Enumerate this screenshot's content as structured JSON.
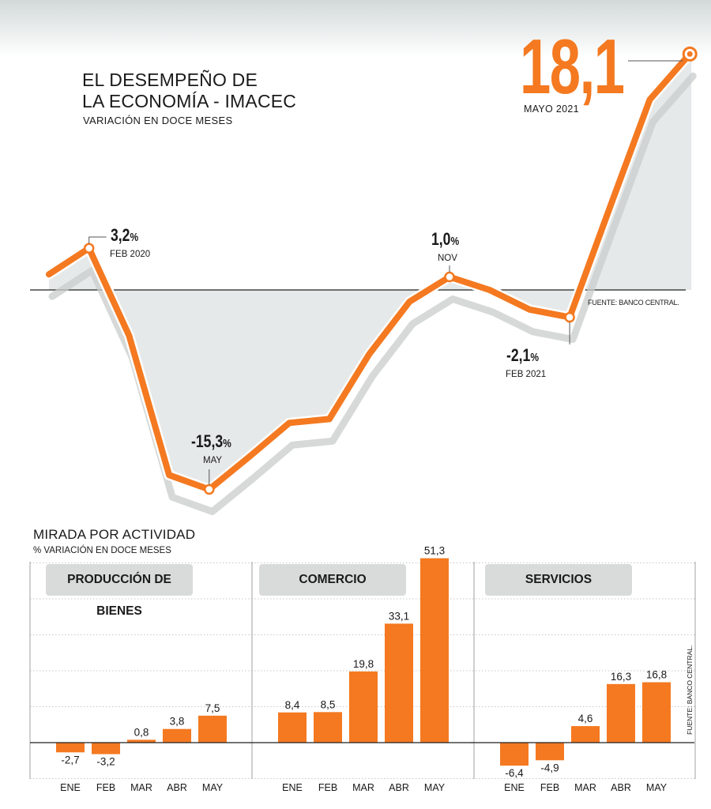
{
  "header": {
    "title_line1": "EL DESEMPEÑO DE",
    "title_line2": "LA ECONOMÍA - IMACEC",
    "subtitle": "VARIACIÓN EN DOCE MESES",
    "source": "FUENTE: BANCO CENTRAL."
  },
  "highlight": {
    "value": "18,1",
    "label": "MAYO 2021"
  },
  "annotations": {
    "feb2020": {
      "value": "3,2",
      "unit": "%",
      "label": "FEB 2020"
    },
    "may2020": {
      "value": "-15,3",
      "unit": "%",
      "label": "MAY"
    },
    "nov2020": {
      "value": "1,0",
      "unit": "%",
      "label": "NOV"
    },
    "feb2021": {
      "value": "-2,1",
      "unit": "%",
      "label": "FEB 2021"
    }
  },
  "section": {
    "title": "MIRADA POR ACTIVIDAD",
    "subtitle": "% VARIACIÓN EN DOCE MESES",
    "source": "FUENTE: BANCO CENTRAL."
  },
  "colors": {
    "accent": "#f47920",
    "shadow": "#c9cccc",
    "area": "#e6e9e9",
    "panel_label_bg": "#d9dbdb"
  },
  "chart_data": [
    {
      "type": "line",
      "title": "EL DESEMPEÑO DE LA ECONOMÍA - IMACEC",
      "subtitle": "VARIACIÓN EN DOCE MESES",
      "y_unit": "%",
      "x": [
        "2020-01",
        "2020-02",
        "2020-03",
        "2020-04",
        "2020-05",
        "2020-06",
        "2020-07",
        "2020-08",
        "2020-09",
        "2020-10",
        "2020-11",
        "2020-12",
        "2021-01",
        "2021-02",
        "2021-03",
        "2021-04",
        "2021-05"
      ],
      "values": [
        1.2,
        3.2,
        -3.5,
        -14.2,
        -15.3,
        -12.8,
        -10.2,
        -9.9,
        -4.9,
        -0.9,
        1.0,
        0.0,
        -1.5,
        -2.1,
        6.3,
        14.6,
        18.1
      ],
      "ylim": [
        -16,
        20
      ],
      "grid": false
    },
    {
      "type": "bar",
      "title": "PRODUCCIÓN DE BIENES",
      "categories": [
        "ENE",
        "FEB",
        "MAR",
        "ABR",
        "MAY"
      ],
      "values": [
        -2.7,
        -3.2,
        0.8,
        3.8,
        7.5
      ],
      "value_labels": [
        "-2,7",
        "-3,2",
        "0,8",
        "3,8",
        "7,5"
      ],
      "ylim": [
        -10,
        50
      ],
      "grid": true
    },
    {
      "type": "bar",
      "title": "COMERCIO",
      "categories": [
        "ENE",
        "FEB",
        "MAR",
        "ABR",
        "MAY"
      ],
      "values": [
        8.4,
        8.5,
        19.8,
        33.1,
        51.3
      ],
      "value_labels": [
        "8,4",
        "8,5",
        "19,8",
        "33,1",
        "51,3"
      ],
      "ylim": [
        -10,
        50
      ],
      "grid": true
    },
    {
      "type": "bar",
      "title": "SERVICIOS",
      "categories": [
        "ENE",
        "FEB",
        "MAR",
        "ABR",
        "MAY"
      ],
      "values": [
        -6.4,
        -4.9,
        4.6,
        16.3,
        16.8
      ],
      "value_labels": [
        "-6,4",
        "-4,9",
        "4,6",
        "16,3",
        "16,8"
      ],
      "ylim": [
        -10,
        50
      ],
      "grid": true
    }
  ]
}
